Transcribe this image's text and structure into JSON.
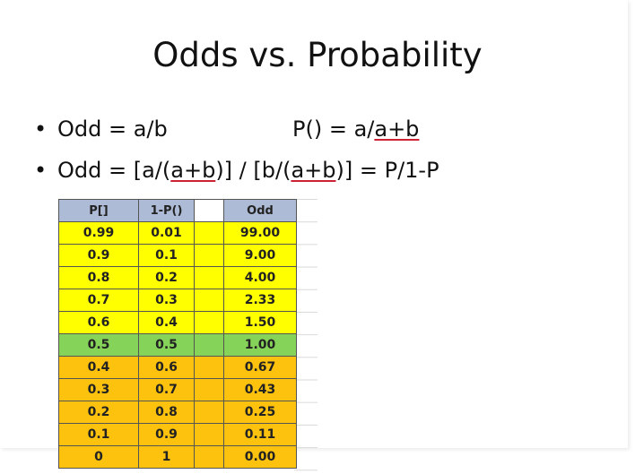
{
  "title": "Odds vs. Probability",
  "bullets": [
    {
      "marker": "•",
      "left": "Odd = a/b",
      "right_prefix": "P() = a/",
      "right_underlined": "a+b"
    },
    {
      "marker": "•",
      "text_prefix": "Odd = [a/(",
      "u1": "a+b",
      "text_mid": ")] / [b/(",
      "u2": "a+b",
      "text_suffix": ")] = P/1-P"
    }
  ],
  "table": {
    "headers": [
      "P[]",
      "1-P()",
      "",
      "Odd"
    ],
    "rows": [
      {
        "cells": [
          "0.99",
          "0.01",
          "",
          "99.00"
        ],
        "color": "yellow"
      },
      {
        "cells": [
          "0.9",
          "0.1",
          "",
          "9.00"
        ],
        "color": "yellow"
      },
      {
        "cells": [
          "0.8",
          "0.2",
          "",
          "4.00"
        ],
        "color": "yellow"
      },
      {
        "cells": [
          "0.7",
          "0.3",
          "",
          "2.33"
        ],
        "color": "yellow"
      },
      {
        "cells": [
          "0.6",
          "0.4",
          "",
          "1.50"
        ],
        "color": "yellow"
      },
      {
        "cells": [
          "0.5",
          "0.5",
          "",
          "1.00"
        ],
        "color": "green"
      },
      {
        "cells": [
          "0.4",
          "0.6",
          "",
          "0.67"
        ],
        "color": "orange"
      },
      {
        "cells": [
          "0.3",
          "0.7",
          "",
          "0.43"
        ],
        "color": "orange"
      },
      {
        "cells": [
          "0.2",
          "0.8",
          "",
          "0.25"
        ],
        "color": "orange"
      },
      {
        "cells": [
          "0.1",
          "0.9",
          "",
          "0.11"
        ],
        "color": "orange"
      },
      {
        "cells": [
          "0",
          "1",
          "",
          "0.00"
        ],
        "color": "orange"
      }
    ]
  },
  "colors": {
    "header": "#aebbd6",
    "yellow": "#ffff00",
    "green": "#86d35a",
    "orange": "#fcc20e"
  }
}
